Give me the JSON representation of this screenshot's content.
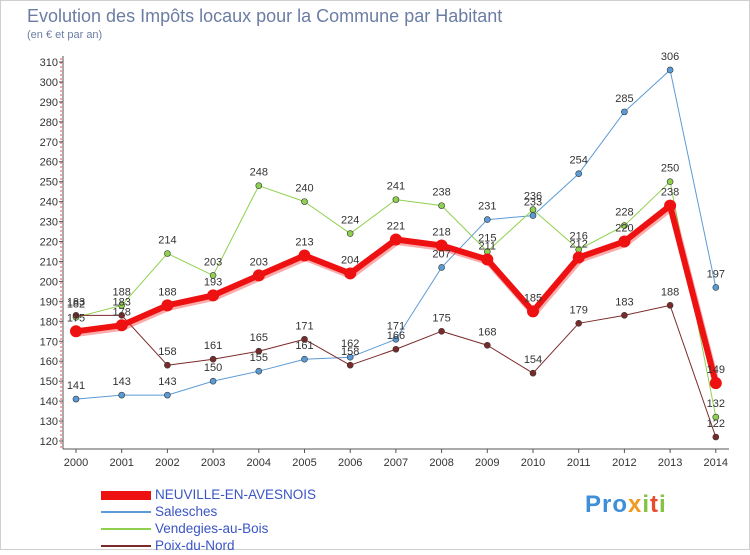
{
  "title": "Evolution des Impôts locaux pour la Commune par Habitant",
  "subtitle": "(en € et par an)",
  "logo": {
    "p1": "Pro",
    "x": "x",
    "i1": "i",
    "t": "t",
    "i2": "i"
  },
  "chart_data": {
    "type": "line",
    "title": "Evolution des Impôts locaux pour la Commune par Habitant",
    "ylabel": "(en € et par an)",
    "xlabel": "",
    "ylim": [
      120,
      310
    ],
    "ytick_step": 10,
    "categories": [
      "2000",
      "2001",
      "2002",
      "2003",
      "2004",
      "2005",
      "2006",
      "2007",
      "2008",
      "2009",
      "2010",
      "2011",
      "2012",
      "2013",
      "2014"
    ],
    "series": [
      {
        "name": "Salesches",
        "color": "#5b9bd5",
        "width": 1,
        "values": [
          141,
          143,
          143,
          150,
          155,
          161,
          162,
          171,
          207,
          231,
          233,
          254,
          285,
          306,
          197
        ]
      },
      {
        "name": "Vendegies-au-Bois",
        "color": "#8fd14f",
        "width": 1,
        "values": [
          182,
          188,
          214,
          203,
          248,
          240,
          224,
          241,
          238,
          215,
          236,
          216,
          228,
          250,
          132
        ]
      },
      {
        "name": "Poix-du-Nord",
        "color": "#7b2a2a",
        "width": 1,
        "values": [
          183,
          183,
          158,
          161,
          165,
          171,
          158,
          166,
          175,
          168,
          154,
          179,
          183,
          188,
          122
        ]
      },
      {
        "name": "NEUVILLE-EN-AVESNOIS",
        "color": "#ee1111",
        "width": 6,
        "values": [
          175,
          178,
          188,
          193,
          203,
          213,
          204,
          221,
          218,
          211,
          185,
          212,
          220,
          238,
          149
        ]
      }
    ],
    "legend": [
      {
        "name": "NEUVILLE-EN-AVESNOIS",
        "color": "#ee1111",
        "thickness": "thick"
      },
      {
        "name": "Salesches",
        "color": "#5b9bd5",
        "thickness": "thin"
      },
      {
        "name": "Vendegies-au-Bois",
        "color": "#8fd14f",
        "thickness": "thin"
      },
      {
        "name": "Poix-du-Nord",
        "color": "#7b2a2a",
        "thickness": "thin"
      }
    ],
    "legend_position": "bottom-left",
    "grid": false
  }
}
